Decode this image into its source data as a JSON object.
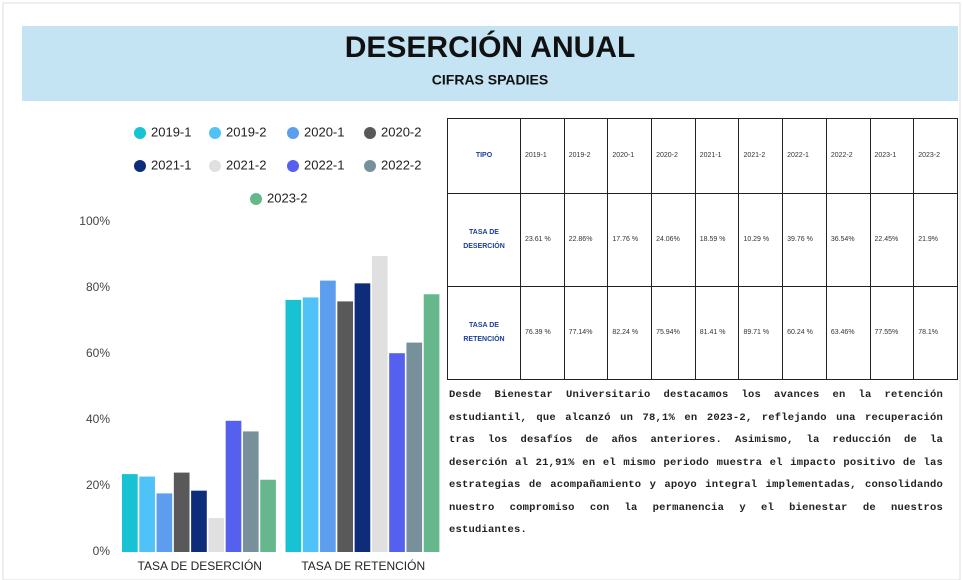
{
  "chart_data": {
    "type": "bar",
    "title": "DESERCIÓN ANUAL",
    "subtitle": "CIFRAS SPADIES",
    "categories": [
      "TASA DE DESERCIÓN",
      "TASA DE RETENCIÓN"
    ],
    "series": [
      {
        "name": "2019-1",
        "color": "#17c3d2",
        "values": [
          23.61,
          76.39
        ]
      },
      {
        "name": "2019-2",
        "color": "#4fc3f7",
        "values": [
          22.86,
          77.14
        ]
      },
      {
        "name": "2020-1",
        "color": "#5c9ded",
        "values": [
          17.76,
          82.24
        ]
      },
      {
        "name": "2020-2",
        "color": "#595959",
        "values": [
          24.06,
          75.94
        ]
      },
      {
        "name": "2021-1",
        "color": "#0d2d7a",
        "values": [
          18.59,
          81.41
        ]
      },
      {
        "name": "2021-2",
        "color": "#e0e0e0",
        "values": [
          10.29,
          89.71
        ]
      },
      {
        "name": "2022-1",
        "color": "#5561ee",
        "values": [
          39.76,
          60.24
        ]
      },
      {
        "name": "2022-2",
        "color": "#78909c",
        "values": [
          36.54,
          63.46
        ]
      },
      {
        "name": "2023-2",
        "color": "#66b88c",
        "values": [
          21.9,
          78.1
        ]
      }
    ],
    "ylim": [
      0,
      100
    ],
    "yticks": [
      {
        "value": 0,
        "label": "0%"
      },
      {
        "value": 20,
        "label": "20%"
      },
      {
        "value": 40,
        "label": "40%"
      },
      {
        "value": 60,
        "label": "60%"
      },
      {
        "value": 80,
        "label": "80%"
      },
      {
        "value": 100,
        "label": "100%"
      }
    ],
    "grid": false
  },
  "table": {
    "header": [
      "TIPO",
      "2019-1",
      "2019-2",
      "2020-1",
      "2020-2",
      "2021-1",
      "2021-2",
      "2022-1",
      "2022-2",
      "2023-1",
      "2023-2"
    ],
    "rows": [
      [
        "TASA DE DESERCIÓN",
        "23.61 %",
        "22.86%",
        "17.76 %",
        "24.06%",
        "18.59 %",
        "10.29 %",
        "39.76 %",
        "36.54%",
        "22.45%",
        "21.9%"
      ],
      [
        "TASA DE RETENCIÓN",
        "76.39 %",
        "77.14%",
        "82.24 %",
        "75.94%",
        "81.41 %",
        "89.71 %",
        "60.24 %",
        "63.46%",
        "77.55%",
        "78.1%"
      ]
    ]
  },
  "paragraph": "Desde Bienestar Universitario destacamos los avances en la retención estudiantil, que alcanzó un 78,1% en 2023-2, reflejando una recuperación tras los desafíos de años anteriores. Asimismo, la reducción de la deserción al 21,91% en el mismo periodo muestra el impacto positivo de las estrategias de acompañamiento y apoyo integral implementadas, consolidando nuestro compromiso con la permanencia y el bienestar de nuestros estudiantes."
}
